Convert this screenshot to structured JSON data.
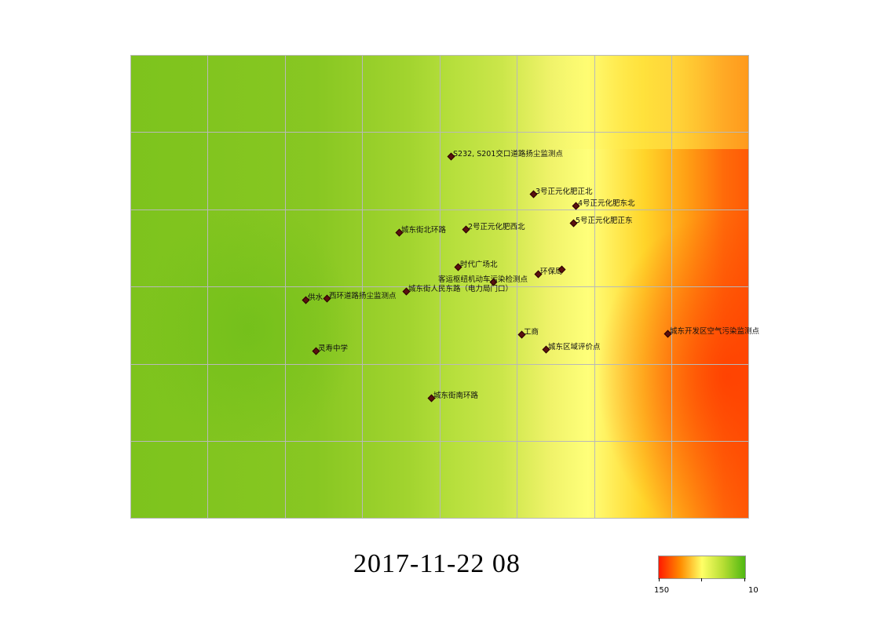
{
  "map": {
    "datetime": "2017-11-22 08",
    "legend": {
      "max_label": "150",
      "min_label": "10",
      "colors": [
        "#ff1a00",
        "#ff8c00",
        "#ffff66",
        "#b5dd33",
        "#4fb811"
      ]
    },
    "stations": [
      {
        "id": "s1",
        "label": "S232, S201交口道路扬尘监测点"
      },
      {
        "id": "s2",
        "label": "3号正元化肥正北"
      },
      {
        "id": "s3",
        "label": "4号正元化肥东北"
      },
      {
        "id": "s4",
        "label": "5号正元化肥正东"
      },
      {
        "id": "s5",
        "label": "城东街北环路"
      },
      {
        "id": "s6",
        "label": "2号正元化肥西北"
      },
      {
        "id": "s7",
        "label": "时代广场北"
      },
      {
        "id": "s8",
        "label": "环保局"
      },
      {
        "id": "s9",
        "label": "客运枢纽机动车污染检测点"
      },
      {
        "id": "s10",
        "label": "城东街人民东路（电力局门口）"
      },
      {
        "id": "s11",
        "label": "供水"
      },
      {
        "id": "s12",
        "label": "西环道路扬尘监测点"
      },
      {
        "id": "s13",
        "label": "工商"
      },
      {
        "id": "s14",
        "label": "城东开发区空气污染监测点"
      },
      {
        "id": "s15",
        "label": "灵寿中学"
      },
      {
        "id": "s16",
        "label": "城东区域评价点"
      },
      {
        "id": "s17",
        "label": "城东街南环路"
      }
    ]
  }
}
